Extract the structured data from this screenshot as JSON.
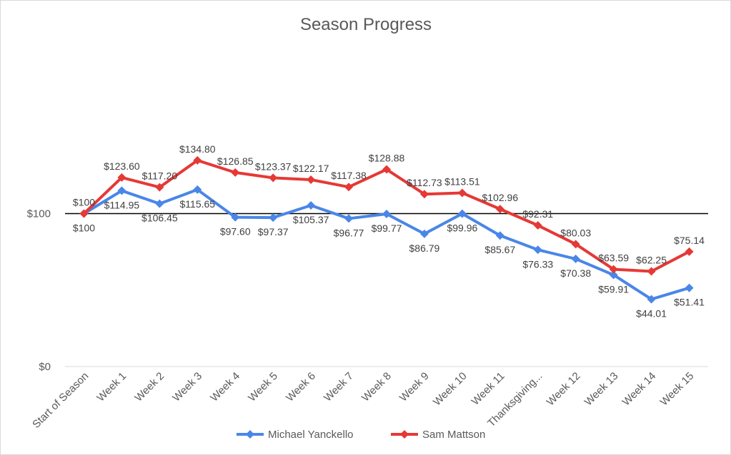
{
  "chart_data": {
    "type": "line",
    "title": "Season Progress",
    "categories": [
      "Start of Season",
      "Week 1",
      "Week 2",
      "Week 3",
      "Week 4",
      "Week 5",
      "Week 6",
      "Week 7",
      "Week 8",
      "Week 9",
      "Week 10",
      "Week 11",
      "Thanksgiving...",
      "Week 12",
      "Week 13",
      "Week 14",
      "Week 15"
    ],
    "y_ticks": [
      {
        "value": 0,
        "label": "$0"
      },
      {
        "value": 100,
        "label": "$100"
      }
    ],
    "ylim": [
      0,
      200
    ],
    "reference_line": 100,
    "grid": false,
    "legend_position": "bottom",
    "series": [
      {
        "name": "Michael Yanckello",
        "color": "#4a86e8",
        "values": [
          100,
          114.95,
          106.45,
          115.65,
          97.6,
          97.37,
          105.37,
          96.77,
          99.77,
          86.79,
          99.96,
          85.67,
          76.33,
          70.38,
          59.91,
          44.01,
          51.41
        ],
        "labels": [
          "$100",
          "$114.95",
          "$106.45",
          "$115.65",
          "$97.60",
          "$97.37",
          "$105.37",
          "$96.77",
          "$99.77",
          "$86.79",
          "$99.96",
          "$85.67",
          "$76.33",
          "$70.38",
          "$59.91",
          "$44.01",
          "$51.41"
        ]
      },
      {
        "name": "Sam Mattson",
        "color": "#e53935",
        "values": [
          100,
          123.6,
          117.2,
          134.8,
          126.85,
          123.37,
          122.17,
          117.38,
          128.88,
          112.73,
          113.51,
          102.96,
          92.31,
          80.03,
          63.59,
          62.25,
          75.14
        ],
        "labels": [
          "$100",
          "$123.60",
          "$117.20",
          "$134.80",
          "$126.85",
          "$123.37",
          "$122.17",
          "$117.38",
          "$128.88",
          "$112.73",
          "$113.51",
          "$102.96",
          "$92.31",
          "$80.03",
          "$63.59",
          "$62.25",
          "$75.14"
        ]
      }
    ]
  }
}
